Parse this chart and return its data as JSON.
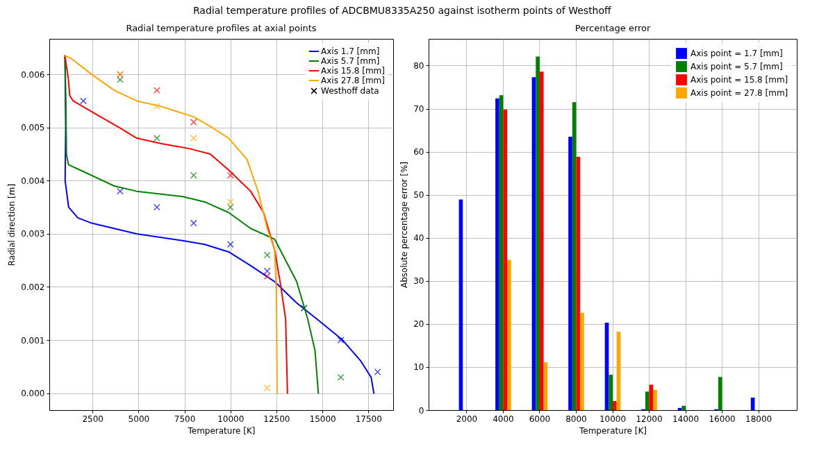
{
  "chart_data": [
    {
      "type": "line",
      "title": "Radial temperature profiles at axial points",
      "annotations": [
        "Radial temperature profiles of ADCBMU8335A250 against isotherm points of Westhoff"
      ],
      "xlabel": "Temperature [K]",
      "ylabel": "Radial direction [m]",
      "xlim": [
        150,
        18850
      ],
      "ylim": [
        -0.000318,
        0.006668
      ],
      "xticks": [
        2500,
        5000,
        7500,
        10000,
        12500,
        15000,
        17500
      ],
      "yticks": [
        {
          "value": 0,
          "label": "0.000"
        },
        {
          "value": 0.001,
          "label": "0.001"
        },
        {
          "value": 0.002,
          "label": "0.002"
        },
        {
          "value": 0.003,
          "label": "0.003"
        },
        {
          "value": 0.004,
          "label": "0.004"
        },
        {
          "value": 0.005,
          "label": "0.005"
        },
        {
          "value": 0.006,
          "label": "0.006"
        }
      ],
      "grid": true,
      "legend": "top right",
      "series": [
        {
          "name": "Axis 1.7 [mm]",
          "color": "#0000ff",
          "x": [
            1000,
            1040,
            1010,
            1200,
            1700,
            2450,
            3680,
            4900,
            7400,
            8600,
            9900,
            11100,
            12400,
            13600,
            14900,
            16100,
            17100,
            17650,
            17800
          ],
          "values": [
            0.00635,
            0.005,
            0.004,
            0.0035,
            0.0033,
            0.0032,
            0.0031,
            0.003,
            0.00287,
            0.0028,
            0.00266,
            0.0024,
            0.0021,
            0.0017,
            0.00134,
            0.001,
            0.0006,
            0.0003,
            0
          ]
        },
        {
          "name": "Axis 5.7 [mm]",
          "color": "#008000",
          "x": [
            1000,
            1050,
            1080,
            1190,
            1820,
            3680,
            4900,
            7400,
            8600,
            9900,
            11100,
            12400,
            13600,
            14200,
            14600,
            14780
          ],
          "values": [
            0.00635,
            0.0055,
            0.0045,
            0.0043,
            0.0042,
            0.0039,
            0.0038,
            0.0037,
            0.0036,
            0.0034,
            0.0031,
            0.0029,
            0.0021,
            0.0014,
            0.0008,
            0
          ]
        },
        {
          "name": "Axis 15.8 [mm]",
          "color": "#ff0000",
          "x": [
            1000,
            1190,
            1260,
            1450,
            2450,
            3940,
            4900,
            6200,
            7800,
            8900,
            9900,
            11100,
            11800,
            12400,
            12700,
            13000,
            13100
          ],
          "values": [
            0.00635,
            0.0059,
            0.0056,
            0.0055,
            0.0053,
            0.005,
            0.0048,
            0.0047,
            0.0046,
            0.0045,
            0.0042,
            0.0038,
            0.0034,
            0.0027,
            0.0021,
            0.0014,
            0
          ]
        },
        {
          "name": "Axis 27.8 [mm]",
          "color": "#ffa500",
          "x": [
            1000,
            1340,
            2450,
            3680,
            4900,
            6200,
            8000,
            9000,
            9900,
            10900,
            11500,
            12000,
            12400,
            12500,
            12540
          ],
          "values": [
            0.00635,
            0.0063,
            0.006,
            0.0057,
            0.0055,
            0.0054,
            0.0052,
            0.005,
            0.0048,
            0.0044,
            0.0038,
            0.0031,
            0.0027,
            0.0019,
            0
          ]
        },
        {
          "type": "scatter",
          "color": "#0000ff",
          "marker": "cross",
          "x": [
            2000,
            4000,
            6000,
            8000,
            10000,
            12000,
            14000,
            16000,
            18000
          ],
          "values": [
            0.0055,
            0.0038,
            0.0035,
            0.0032,
            0.0028,
            0.0023,
            0.0016,
            0.001,
            0.0004
          ]
        },
        {
          "type": "scatter",
          "color": "#008000",
          "marker": "cross",
          "x": [
            4000,
            6000,
            8000,
            10000,
            12000,
            14000,
            16000
          ],
          "values": [
            0.0059,
            0.0048,
            0.0041,
            0.0035,
            0.0026,
            0.0016,
            0.0003
          ]
        },
        {
          "type": "scatter",
          "color": "#ff0000",
          "marker": "cross",
          "x": [
            4000,
            6000,
            8000,
            10000,
            12000
          ],
          "values": [
            0.006,
            0.0057,
            0.0051,
            0.0041,
            0.0022
          ]
        },
        {
          "type": "scatter",
          "color": "#ffa500",
          "marker": "cross",
          "x": [
            4000,
            6000,
            8000,
            10000,
            12000
          ],
          "values": [
            0.006,
            0.0054,
            0.0048,
            0.0036,
            0.0001
          ]
        }
      ],
      "legend_title": "Westhoff data"
    },
    {
      "type": "bar",
      "title": "Percentage error",
      "xlabel": "Temperature [K]",
      "ylabel": "Absolute percentage error [%]",
      "categories": [
        "2000",
        "4000",
        "6000",
        "8000",
        "10000",
        "12000",
        "14000",
        "16000",
        "18000"
      ],
      "ylim": [
        0,
        86.2
      ],
      "yticks": [
        0,
        10,
        20,
        30,
        40,
        50,
        60,
        70,
        80
      ],
      "grid": true,
      "legend": "top right",
      "series": [
        {
          "name": "Axis point = 1.7 [mm]",
          "color": "#0000ff",
          "values": [
            48.9,
            72.4,
            77.3,
            63.5,
            20.3,
            0.2,
            0.5,
            0.2,
            2.9
          ]
        },
        {
          "name": "Axis point = 5.7 [mm]",
          "color": "#008000",
          "values": [
            null,
            73.1,
            82.1,
            71.5,
            8.2,
            4.3,
            1.0,
            7.7,
            null
          ]
        },
        {
          "name": "Axis point = 15.8 [mm]",
          "color": "#ff0000",
          "values": [
            null,
            69.8,
            78.6,
            58.8,
            2.1,
            5.9,
            null,
            null,
            null
          ]
        },
        {
          "name": "Axis point = 27.8 [mm]",
          "color": "#ffa500",
          "values": [
            null,
            34.9,
            11.1,
            22.6,
            18.2,
            4.7,
            null,
            null,
            null
          ]
        }
      ]
    }
  ]
}
